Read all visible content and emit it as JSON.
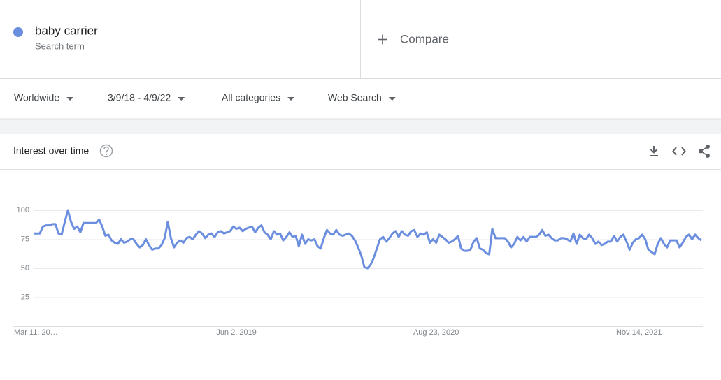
{
  "search": {
    "term_label": "Search term",
    "compare": "Compare"
  },
  "filters": [
    "Worldwide",
    "3/9/18 - 4/9/22",
    "All categories",
    "Web Search"
  ],
  "card_title": "Interest over time",
  "chart_data": {
    "type": "line",
    "categories": [
      "Mar 11, 20…",
      null,
      null,
      null,
      null,
      null,
      null,
      null,
      null,
      null,
      null,
      null,
      null,
      null,
      null,
      null,
      null,
      null,
      null,
      null,
      null,
      null,
      null,
      null,
      null,
      null,
      null,
      null,
      null,
      null,
      null,
      null,
      null,
      null,
      null,
      null,
      null,
      null,
      null,
      null,
      null,
      null,
      null,
      null,
      null,
      null,
      null,
      null,
      null,
      null,
      null,
      null,
      null,
      null,
      null,
      null,
      null,
      null,
      null,
      null,
      null,
      null,
      null,
      null,
      null,
      "Jun 2, 2019",
      null,
      null,
      null,
      null,
      null,
      null,
      null,
      null,
      null,
      null,
      null,
      null,
      null,
      null,
      null,
      null,
      null,
      null,
      null,
      null,
      null,
      null,
      null,
      null,
      null,
      null,
      null,
      null,
      null,
      null,
      null,
      null,
      null,
      null,
      null,
      null,
      null,
      null,
      null,
      null,
      null,
      null,
      null,
      null,
      null,
      null,
      null,
      null,
      null,
      null,
      null,
      null,
      null,
      null,
      null,
      null,
      null,
      null,
      null,
      null,
      null,
      null,
      null,
      "Aug 23, 2020",
      null,
      null,
      null,
      null,
      null,
      null,
      null,
      null,
      null,
      null,
      null,
      null,
      null,
      null,
      null,
      null,
      null,
      null,
      null,
      null,
      null,
      null,
      null,
      null,
      null,
      null,
      null,
      null,
      null,
      null,
      null,
      null,
      null,
      null,
      null,
      null,
      null,
      null,
      null,
      null,
      null,
      null,
      null,
      null,
      null,
      null,
      null,
      null,
      null,
      null,
      null,
      null,
      null,
      null,
      null,
      null,
      null,
      null,
      null,
      null,
      null,
      null,
      null,
      null,
      "Nov 14, 2021",
      null,
      null,
      null,
      null,
      null,
      null,
      null,
      null,
      null,
      null,
      null,
      null,
      null,
      null,
      null,
      null,
      null,
      null,
      null,
      null
    ],
    "series": [
      {
        "name": "baby carrier",
        "color": "#6b8edf",
        "values": [
          80,
          80,
          80,
          86,
          87,
          87,
          88,
          88,
          80,
          79,
          90,
          100,
          90,
          84,
          86,
          81,
          89,
          89,
          89,
          89,
          89,
          92,
          86,
          78,
          79,
          74,
          72,
          71,
          75,
          72,
          73,
          75,
          75,
          71,
          68,
          70,
          75,
          70,
          66,
          67,
          67,
          70,
          76,
          90,
          76,
          68,
          72,
          74,
          72,
          76,
          77,
          75,
          79,
          82,
          80,
          76,
          79,
          80,
          77,
          81,
          82,
          80,
          81,
          82,
          86,
          84,
          85,
          82,
          84,
          85,
          86,
          81,
          85,
          87,
          81,
          79,
          75,
          82,
          79,
          80,
          74,
          77,
          81,
          77,
          78,
          69,
          79,
          71,
          75,
          74,
          75,
          69,
          67,
          76,
          83,
          80,
          79,
          83,
          79,
          78,
          79,
          80,
          78,
          74,
          68,
          61,
          51,
          50,
          53,
          59,
          67,
          75,
          77,
          73,
          76,
          80,
          82,
          77,
          82,
          79,
          78,
          82,
          83,
          77,
          80,
          79,
          81,
          72,
          75,
          72,
          79,
          77,
          75,
          72,
          73,
          75,
          78,
          67,
          65,
          65,
          66,
          73,
          76,
          67,
          66,
          63,
          62,
          84,
          76,
          76,
          76,
          76,
          73,
          68,
          71,
          77,
          74,
          77,
          73,
          77,
          77,
          77,
          79,
          83,
          78,
          79,
          76,
          74,
          74,
          76,
          76,
          75,
          73,
          80,
          71,
          79,
          76,
          75,
          79,
          76,
          71,
          73,
          70,
          71,
          73,
          73,
          78,
          73,
          77,
          79,
          73,
          66,
          72,
          75,
          76,
          79,
          75,
          66,
          64,
          62,
          71,
          76,
          71,
          68,
          74,
          74,
          74,
          68,
          72,
          77,
          79,
          75,
          79,
          76,
          74
        ]
      }
    ],
    "ylim": [
      0,
      100
    ],
    "yticks": [
      25,
      50,
      75,
      100
    ],
    "grid": true
  }
}
